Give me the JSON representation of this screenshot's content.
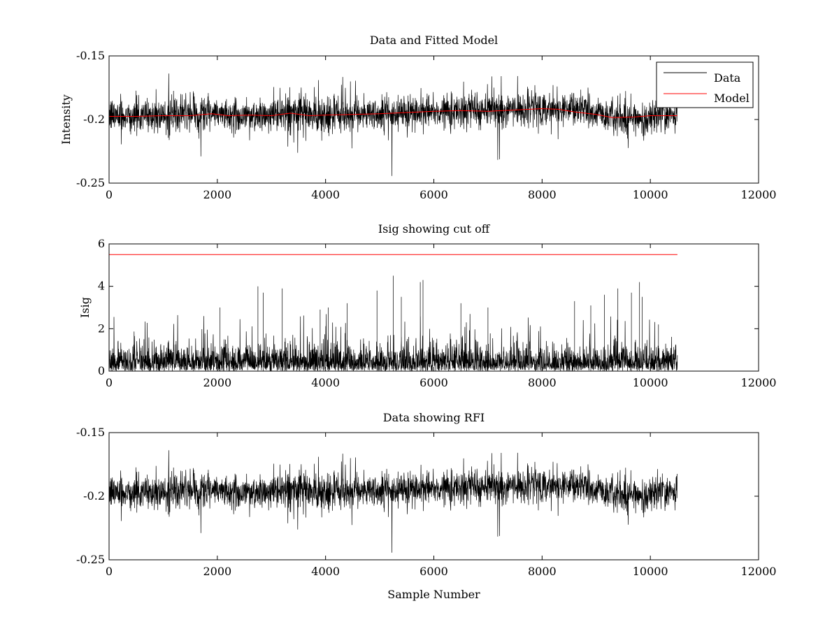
{
  "chart_data": [
    {
      "type": "line",
      "title": "Data and Fitted Model",
      "xlabel": "",
      "ylabel": "Intensity",
      "xlim": [
        0,
        12000
      ],
      "ylim": [
        -0.25,
        -0.15
      ],
      "y_reversed": true,
      "xticks": [
        0,
        2000,
        4000,
        6000,
        8000,
        10000,
        12000
      ],
      "xtick_labels": [
        "0",
        "2000",
        "4000",
        "6000",
        "8000",
        "10000",
        "12000"
      ],
      "yticks": [
        -0.15,
        -0.2,
        -0.25
      ],
      "ytick_labels": [
        "-0.15",
        "-0.2",
        "-0.25"
      ],
      "legend": {
        "placement": "top-right",
        "entries": [
          "Data",
          "Model"
        ]
      },
      "series": [
        {
          "name": "Data",
          "color": "#000000",
          "x_range": [
            0,
            10500
          ],
          "noise_sigma": 0.0085,
          "baseline_x": [
            0,
            1000,
            1800,
            2200,
            2800,
            3300,
            3800,
            4500,
            5200,
            6000,
            6500,
            7200,
            7800,
            8300,
            8800,
            9300,
            9800,
            10500
          ],
          "baseline_y": [
            -0.197,
            -0.197,
            -0.195,
            -0.197,
            -0.197,
            -0.195,
            -0.197,
            -0.196,
            -0.195,
            -0.193,
            -0.192,
            -0.193,
            -0.191,
            -0.191,
            -0.193,
            -0.199,
            -0.199,
            -0.196
          ]
        },
        {
          "name": "Model",
          "color": "#ff0000",
          "x": [
            0,
            500,
            1000,
            1500,
            1900,
            2200,
            2600,
            3000,
            3350,
            3700,
            4000,
            4500,
            5000,
            5500,
            6000,
            6500,
            7000,
            7500,
            8000,
            8300,
            8600,
            9000,
            9300,
            9700,
            10000,
            10500
          ],
          "y": [
            -0.1975,
            -0.1975,
            -0.197,
            -0.197,
            -0.1955,
            -0.197,
            -0.1965,
            -0.197,
            -0.195,
            -0.197,
            -0.1965,
            -0.196,
            -0.1955,
            -0.1945,
            -0.1935,
            -0.193,
            -0.1935,
            -0.1925,
            -0.1915,
            -0.192,
            -0.194,
            -0.196,
            -0.1985,
            -0.198,
            -0.197,
            -0.197
          ]
        }
      ]
    },
    {
      "type": "line",
      "title": "Isig showing cut off",
      "xlabel": "",
      "ylabel": "Isig",
      "xlim": [
        0,
        12000
      ],
      "ylim": [
        0,
        6
      ],
      "xticks": [
        0,
        2000,
        4000,
        6000,
        8000,
        10000,
        12000
      ],
      "xtick_labels": [
        "0",
        "2000",
        "4000",
        "6000",
        "8000",
        "10000",
        "12000"
      ],
      "yticks": [
        0,
        2,
        4,
        6
      ],
      "ytick_labels": [
        "0",
        "2",
        "4",
        "6"
      ],
      "series": [
        {
          "color": "#000000",
          "x_range": [
            0,
            10500
          ],
          "typical_max": 1.8,
          "spikes_x": [
            2050,
            2750,
            2850,
            3200,
            3900,
            4050,
            4400,
            4950,
            5250,
            5400,
            5750,
            5800,
            6500,
            7000,
            8600,
            8900,
            9150,
            9400,
            9650,
            9800,
            9850,
            10150
          ],
          "spikes_y": [
            3.0,
            4.0,
            3.7,
            3.9,
            2.9,
            3.0,
            3.2,
            3.8,
            4.5,
            3.5,
            4.2,
            4.3,
            3.2,
            3.0,
            3.3,
            3.1,
            3.6,
            3.9,
            3.7,
            4.2,
            3.5,
            2.2
          ]
        },
        {
          "color": "#ff0000",
          "x": [
            0,
            10500
          ],
          "y": [
            5.5,
            5.5
          ]
        }
      ]
    },
    {
      "type": "line",
      "title": "Data showing RFI",
      "xlabel": "Sample Number",
      "ylabel": "",
      "xlim": [
        0,
        12000
      ],
      "ylim": [
        -0.25,
        -0.15
      ],
      "y_reversed": true,
      "xticks": [
        0,
        2000,
        4000,
        6000,
        8000,
        10000,
        12000
      ],
      "xtick_labels": [
        "0",
        "2000",
        "4000",
        "6000",
        "8000",
        "10000",
        "12000"
      ],
      "yticks": [
        -0.15,
        -0.2,
        -0.25
      ],
      "ytick_labels": [
        "-0.15",
        "-0.2",
        "-0.25"
      ],
      "series": [
        {
          "color": "#000000",
          "x_range": [
            0,
            10500
          ],
          "noise_sigma": 0.0085,
          "baseline_x": [
            0,
            1000,
            1800,
            2200,
            2800,
            3300,
            3800,
            4500,
            5200,
            6000,
            6500,
            7200,
            7800,
            8300,
            8800,
            9300,
            9800,
            10500
          ],
          "baseline_y": [
            -0.197,
            -0.197,
            -0.195,
            -0.197,
            -0.197,
            -0.195,
            -0.197,
            -0.196,
            -0.195,
            -0.193,
            -0.192,
            -0.193,
            -0.191,
            -0.191,
            -0.193,
            -0.199,
            -0.199,
            -0.196
          ]
        }
      ]
    }
  ]
}
